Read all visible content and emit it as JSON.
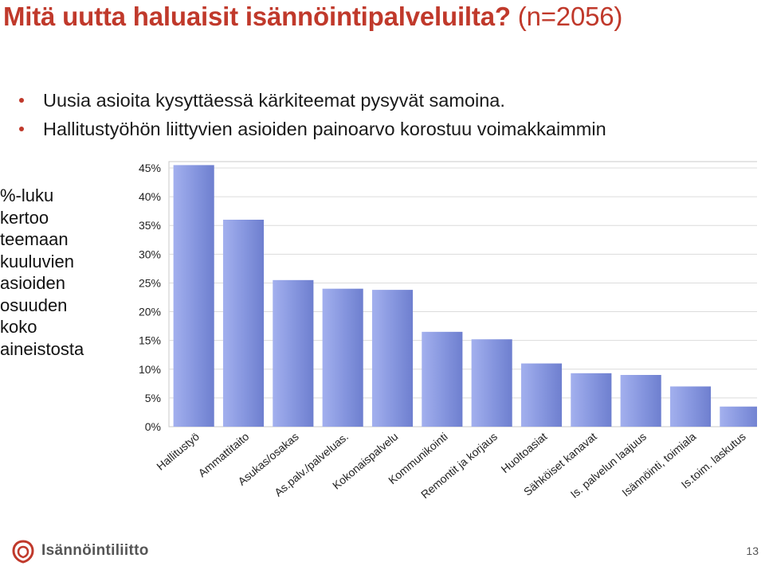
{
  "slide": {
    "title_main": "Mitä uutta haluaisit isännöintipalveluilta?",
    "title_sub": "(n=2056)",
    "bullets": [
      "Uusia asioita kysyttäessä kärkiteemat pysyvät samoina.",
      "Hallitustyöhön liittyvien asioiden painoarvo korostuu voimakkaimmin"
    ],
    "side_note_lines": [
      "%-luku",
      "kertoo",
      "teemaan",
      "kuuluvien",
      "asioiden",
      "osuuden",
      "koko",
      "aineistosta"
    ],
    "logo_text": "Isännöintiliitto",
    "page_number": "13",
    "accent_color": "#c0392b"
  },
  "chart_data": {
    "type": "bar",
    "title": "",
    "xlabel": "",
    "ylabel": "",
    "ylim": [
      0,
      45
    ],
    "yticks": [
      0,
      5,
      10,
      15,
      20,
      25,
      30,
      35,
      40,
      45
    ],
    "ytick_labels": [
      "0%",
      "5%",
      "10%",
      "15%",
      "20%",
      "25%",
      "30%",
      "35%",
      "40%",
      "45%"
    ],
    "categories": [
      "Hallitustyö",
      "Ammattitaito",
      "Asukas/osakas",
      "As.palv./palveluas.",
      "Kokonaispalvelu",
      "Kommunikointi",
      "Remontit ja korjaus",
      "Huoltoasiat",
      "Sähköiset kanavat",
      "Is. palvelun laajuus",
      "Isännöinti, toimiala",
      "Is.toim. laskutus"
    ],
    "values": [
      45.5,
      36,
      25.5,
      24,
      23.8,
      16.5,
      15.2,
      11,
      9.3,
      9,
      7,
      3.5
    ],
    "bar_color": "#8a9ae0",
    "grid": true,
    "legend": "none"
  }
}
